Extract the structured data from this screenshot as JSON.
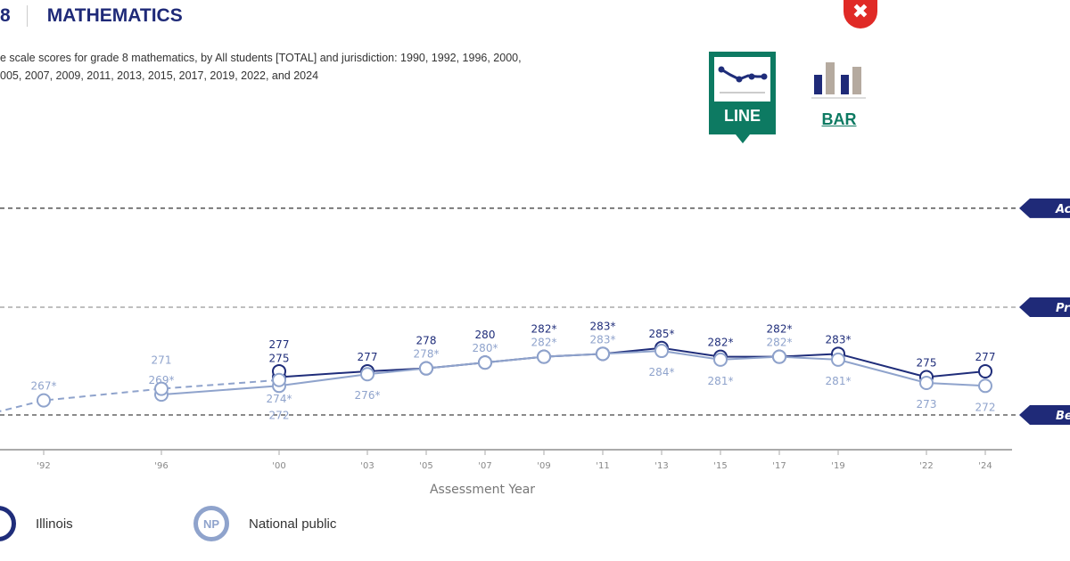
{
  "header": {
    "grade_fragment": "8",
    "subject": "MATHEMATICS"
  },
  "description": {
    "line1": "e scale scores for grade 8 mathematics, by All students [TOTAL] and jurisdiction: 1990, 1992, 1996, 2000,",
    "line2": "005, 2007, 2009, 2011, 2013, 2015, 2017, 2019, 2022, and 2024"
  },
  "controls": {
    "close_icon": "✖",
    "line_label": "LINE",
    "bar_label": "BAR",
    "active_view": "line"
  },
  "chart_data": {
    "type": "line",
    "xlabel": "Assessment Year",
    "ylabel": "",
    "x_ticks": [
      "'92",
      "'96",
      "'00",
      "'03",
      "'05",
      "'07",
      "'09",
      "'11",
      "'13",
      "'15",
      "'17",
      "'19",
      "'22",
      "'24"
    ],
    "x_tick_years": [
      1992,
      1996,
      2000,
      2003,
      2005,
      2007,
      2009,
      2011,
      2013,
      2015,
      2017,
      2019,
      2022,
      2024
    ],
    "achievement_levels": [
      {
        "label": "Ac",
        "score": 333
      },
      {
        "label": "Pr",
        "score": 299
      },
      {
        "label": "Be",
        "score": 262
      }
    ],
    "series": [
      {
        "name": "Illinois",
        "legend_code": "",
        "color": "#1f2d7a",
        "style": "solid",
        "points": [
          {
            "year": 2000,
            "value": 275,
            "label": "275"
          },
          {
            "year": 2003,
            "value": 277,
            "label": "277"
          },
          {
            "year": 2005,
            "value": 278,
            "label": "278"
          },
          {
            "year": 2007,
            "value": 280,
            "label": "280"
          },
          {
            "year": 2009,
            "value": 282,
            "label": "282*"
          },
          {
            "year": 2011,
            "value": 283,
            "label": "283*"
          },
          {
            "year": 2013,
            "value": 285,
            "label": "285*"
          },
          {
            "year": 2015,
            "value": 282,
            "label": "282*"
          },
          {
            "year": 2017,
            "value": 282,
            "label": "282*"
          },
          {
            "year": 2019,
            "value": 283,
            "label": "283*"
          },
          {
            "year": 2022,
            "value": 275,
            "label": "275"
          },
          {
            "year": 2024,
            "value": 277,
            "label": "277"
          }
        ]
      },
      {
        "name": "Illinois",
        "color": "#1f2d7a",
        "style": "dashed",
        "points": [
          {
            "year": 1990,
            "value": 261,
            "label": "*"
          },
          {
            "year": 2000,
            "value": 277,
            "label": "277"
          }
        ]
      },
      {
        "name": "National public",
        "legend_code": "NP",
        "color": "#8fa3cc",
        "style": "solid",
        "points": [
          {
            "year": 1996,
            "value": 269,
            "label": "269*"
          },
          {
            "year": 2000,
            "value": 272,
            "label": "272"
          },
          {
            "year": 2003,
            "value": 276,
            "label": "276*"
          },
          {
            "year": 2005,
            "value": 278,
            "label": "278*"
          },
          {
            "year": 2007,
            "value": 280,
            "label": "280*"
          },
          {
            "year": 2009,
            "value": 282,
            "label": "282*"
          },
          {
            "year": 2011,
            "value": 283,
            "label": "283*"
          },
          {
            "year": 2013,
            "value": 284,
            "label": "284*"
          },
          {
            "year": 2015,
            "value": 281,
            "label": "281*"
          },
          {
            "year": 2017,
            "value": 282,
            "label": "282*"
          },
          {
            "year": 2019,
            "value": 281,
            "label": "281*"
          },
          {
            "year": 2022,
            "value": 273,
            "label": "273"
          },
          {
            "year": 2024,
            "value": 272,
            "label": "272"
          }
        ]
      },
      {
        "name": "National public",
        "color": "#8fa3cc",
        "style": "dashed",
        "points": [
          {
            "year": 1990,
            "value": 262,
            "label": "*"
          },
          {
            "year": 1992,
            "value": 267,
            "label": "267*"
          },
          {
            "year": 1996,
            "value": 271,
            "label": "271"
          },
          {
            "year": 2000,
            "value": 274,
            "label": "274*"
          }
        ]
      }
    ]
  },
  "legend": [
    {
      "label": "Illinois",
      "code": "",
      "color": "#1f2d7a"
    },
    {
      "label": "National public",
      "code": "NP",
      "color": "#8fa3cc"
    }
  ]
}
